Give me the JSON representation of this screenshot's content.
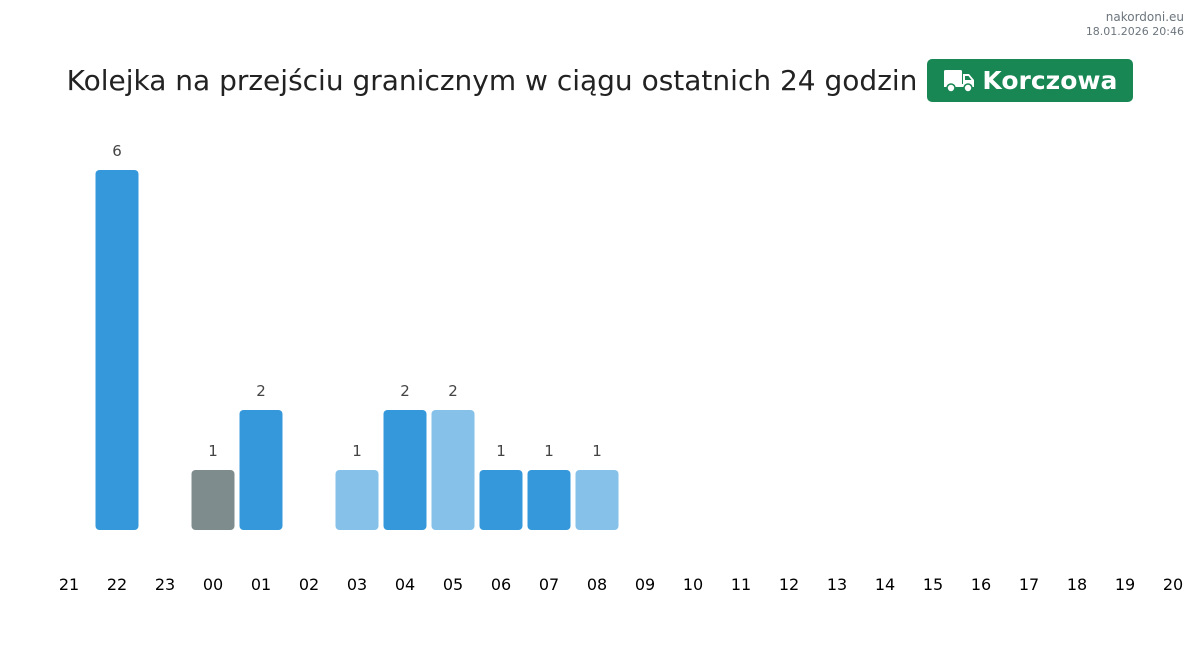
{
  "source": {
    "site": "nakordoni.eu",
    "timestamp": "18.01.2026 20:46"
  },
  "header": {
    "title": "Kolejka na przejściu granicznym w ciągu ostatnich 24 godzin",
    "badge": {
      "icon": "truck-icon",
      "label": "Korczowa",
      "color": "#198754"
    }
  },
  "chart_data": {
    "type": "bar",
    "title": "Kolejka na przejściu granicznym w ciągu ostatnich 24 godzin",
    "xlabel": "",
    "ylabel": "",
    "ylim": [
      0,
      6
    ],
    "grid": false,
    "categories": [
      "21",
      "22",
      "23",
      "00",
      "01",
      "02",
      "03",
      "04",
      "05",
      "06",
      "07",
      "08",
      "09",
      "10",
      "11",
      "12",
      "13",
      "14",
      "15",
      "16",
      "17",
      "18",
      "19",
      "20"
    ],
    "values": [
      null,
      6,
      null,
      1,
      2,
      null,
      1,
      2,
      2,
      1,
      1,
      1,
      null,
      null,
      null,
      null,
      null,
      null,
      null,
      null,
      null,
      null,
      null,
      null
    ],
    "colors": [
      null,
      "#3498db",
      null,
      "#7f8c8d",
      "#3498db",
      null,
      "#85c1e9",
      "#3498db",
      "#85c1e9",
      "#3498db",
      "#3498db",
      "#85c1e9",
      null,
      null,
      null,
      null,
      null,
      null,
      null,
      null,
      null,
      null,
      null,
      null
    ]
  }
}
